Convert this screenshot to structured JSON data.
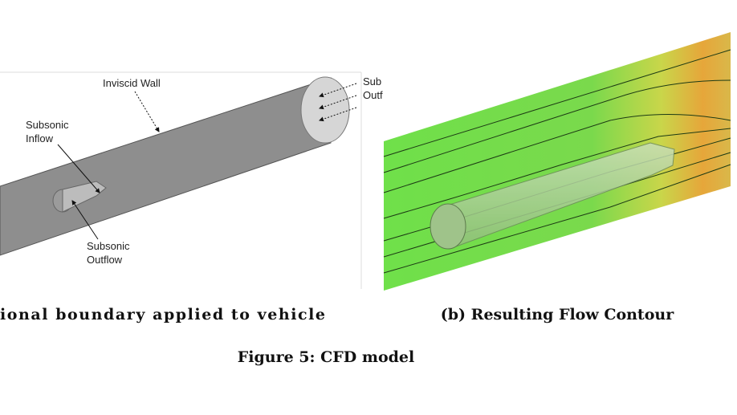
{
  "figure": {
    "caption": "Figure 5: CFD model",
    "panels": [
      {
        "caption": "ional boundary applied to vehicle",
        "labels": {
          "inviscid_wall": "Inviscid Wall",
          "subsonic_inflow": [
            "Subsonic",
            "Inflow"
          ],
          "subsonic_outflow": [
            "Subsonic",
            "Outflow"
          ],
          "cropped_outflow": [
            "Sub",
            "Outf"
          ]
        }
      },
      {
        "caption": "(b) Resulting Flow Contour"
      }
    ]
  }
}
